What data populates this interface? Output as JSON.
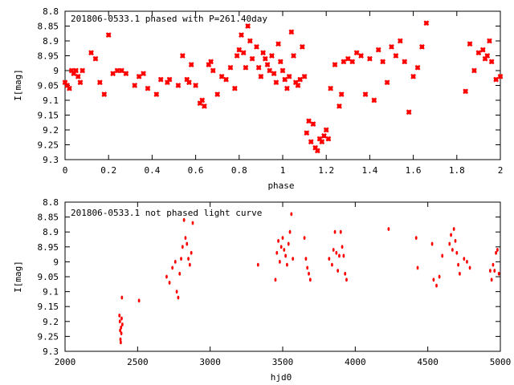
{
  "chart_data": [
    {
      "type": "scatter",
      "title": "201806-0533.1 phased with P=261.40day",
      "xlabel": "phase",
      "ylabel": "I[mag]",
      "xlim": [
        0,
        2
      ],
      "ylim": [
        8.8,
        9.3
      ],
      "y_inverted": true,
      "grid": false,
      "marker": "cross",
      "color": "#ff0000",
      "xticks": [
        "0",
        "0.2",
        "0.4",
        "0.6",
        "0.8",
        "1",
        "1.2",
        "1.4",
        "1.6",
        "1.8",
        "2"
      ],
      "yticks": [
        "8.8",
        "8.85",
        "8.9",
        "8.95",
        "9",
        "9.05",
        "9.1",
        "9.15",
        "9.2",
        "9.25",
        "9.3"
      ],
      "series": [
        {
          "x": [
            0.0,
            0.01,
            0.02,
            0.03,
            0.04,
            0.05,
            0.06,
            0.07,
            0.08,
            0.12,
            0.14,
            0.16,
            0.18,
            0.2,
            0.22,
            0.24,
            0.26,
            0.28,
            0.32,
            0.34,
            0.36,
            0.38,
            0.42,
            0.44,
            0.47,
            0.48,
            0.52,
            0.54,
            0.56,
            0.57,
            0.58,
            0.6,
            0.62,
            0.63,
            0.64,
            0.66,
            0.67,
            0.68,
            0.7,
            0.72,
            0.74,
            0.76,
            0.78,
            0.79,
            0.8,
            0.81,
            0.82,
            0.83,
            0.84,
            0.85,
            0.86,
            0.88,
            0.89,
            0.9,
            0.91,
            0.92,
            0.93,
            0.94,
            0.95,
            0.96,
            0.97,
            0.98,
            0.99,
            1.0,
            1.01,
            1.02,
            1.03,
            1.04,
            1.05,
            1.06,
            1.07,
            1.08,
            1.09,
            1.1,
            1.11,
            1.12,
            1.13,
            1.14,
            1.15,
            1.16,
            1.17,
            1.18,
            1.19,
            1.2,
            1.21,
            1.22,
            1.24,
            1.26,
            1.27,
            1.28,
            1.3,
            1.32,
            1.34,
            1.36,
            1.38,
            1.4,
            1.42,
            1.44,
            1.46,
            1.48,
            1.5,
            1.52,
            1.54,
            1.56,
            1.58,
            1.6,
            1.62,
            1.64,
            1.66,
            1.84,
            1.86,
            1.88,
            1.9,
            1.92,
            1.93,
            1.94,
            1.95,
            1.96,
            1.98,
            2.0
          ],
          "y": [
            9.04,
            9.05,
            9.06,
            9.0,
            9.01,
            9.0,
            9.02,
            9.04,
            9.0,
            8.94,
            8.96,
            9.04,
            9.08,
            8.88,
            9.01,
            9.0,
            9.0,
            9.01,
            9.05,
            9.02,
            9.01,
            9.06,
            9.08,
            9.03,
            9.04,
            9.03,
            9.05,
            8.95,
            9.03,
            9.04,
            8.98,
            9.05,
            9.11,
            9.1,
            9.12,
            8.98,
            8.97,
            9.0,
            9.08,
            9.02,
            9.03,
            8.99,
            9.06,
            8.95,
            8.93,
            8.88,
            8.94,
            8.99,
            8.85,
            8.9,
            8.96,
            8.92,
            8.99,
            9.02,
            8.94,
            8.96,
            8.98,
            9.0,
            8.95,
            9.01,
            9.04,
            8.91,
            8.97,
            9.0,
            9.03,
            9.06,
            9.02,
            8.87,
            8.95,
            9.04,
            9.05,
            9.03,
            8.92,
            9.02,
            9.21,
            9.17,
            9.24,
            9.18,
            9.26,
            9.27,
            9.23,
            9.24,
            9.22,
            9.2,
            9.23,
            9.06,
            8.98,
            9.12,
            9.08,
            8.97,
            8.96,
            8.97,
            8.94,
            8.95,
            9.08,
            8.96,
            9.1,
            8.93,
            8.97,
            9.04,
            8.92,
            8.95,
            8.9,
            8.97,
            9.14,
            9.02,
            8.99,
            8.92,
            8.84,
            9.07,
            8.91,
            9.0,
            8.94,
            8.93,
            8.96,
            8.95,
            8.9,
            8.97,
            9.03,
            9.02
          ]
        }
      ]
    },
    {
      "type": "scatter",
      "title": "201806-0533.1 not phased light curve",
      "xlabel": "hjd0",
      "ylabel": "I[mag]",
      "xlim": [
        2000,
        5000
      ],
      "ylim": [
        8.8,
        9.3
      ],
      "y_inverted": true,
      "grid": false,
      "marker": "dot",
      "color": "#ff0000",
      "xticks": [
        "2000",
        "2500",
        "3000",
        "3500",
        "4000",
        "4500",
        "5000"
      ],
      "yticks": [
        "8.8",
        "8.85",
        "8.9",
        "8.95",
        "9",
        "9.05",
        "9.1",
        "9.15",
        "9.2",
        "9.25",
        "9.3"
      ],
      "series": [
        {
          "x": [
            2375,
            2378,
            2380,
            2382,
            2384,
            2386,
            2388,
            2390,
            2392,
            2395,
            2510,
            2700,
            2720,
            2740,
            2760,
            2770,
            2780,
            2790,
            2800,
            2810,
            2820,
            2830,
            2840,
            2850,
            2860,
            2870,
            2880,
            3330,
            3450,
            3460,
            3470,
            3480,
            3490,
            3500,
            3510,
            3520,
            3530,
            3540,
            3550,
            3560,
            3570,
            3650,
            3660,
            3670,
            3680,
            3690,
            3820,
            3840,
            3850,
            3860,
            3870,
            3880,
            3890,
            3900,
            3910,
            3920,
            3930,
            3940,
            4230,
            4420,
            4430,
            4530,
            4540,
            4560,
            4580,
            4600,
            4650,
            4660,
            4670,
            4680,
            4690,
            4700,
            4710,
            4720,
            4750,
            4770,
            4790,
            4930,
            4940,
            4950,
            4960,
            4970,
            4980,
            4990
          ],
          "y": [
            9.18,
            9.2,
            9.23,
            9.26,
            9.27,
            9.22,
            9.24,
            9.19,
            9.12,
            9.21,
            9.13,
            9.05,
            9.07,
            9.02,
            9.0,
            9.1,
            9.12,
            9.04,
            8.99,
            8.95,
            8.86,
            8.92,
            8.94,
            8.99,
            9.01,
            8.97,
            8.87,
            9.01,
            9.06,
            8.97,
            8.93,
            9.0,
            8.95,
            8.92,
            8.96,
            8.98,
            9.01,
            8.94,
            8.9,
            8.84,
            8.99,
            8.92,
            8.99,
            9.02,
            9.04,
            9.06,
            8.99,
            9.01,
            8.96,
            8.9,
            8.97,
            9.03,
            8.98,
            8.9,
            8.95,
            8.98,
            9.04,
            9.06,
            8.89,
            8.92,
            9.02,
            8.94,
            9.06,
            9.08,
            9.05,
            8.98,
            8.94,
            8.91,
            8.96,
            8.89,
            8.93,
            8.97,
            9.01,
            9.04,
            8.99,
            9.0,
            9.02,
            9.03,
            9.06,
            9.01,
            9.03,
            8.97,
            8.96,
            9.04
          ]
        }
      ]
    }
  ]
}
